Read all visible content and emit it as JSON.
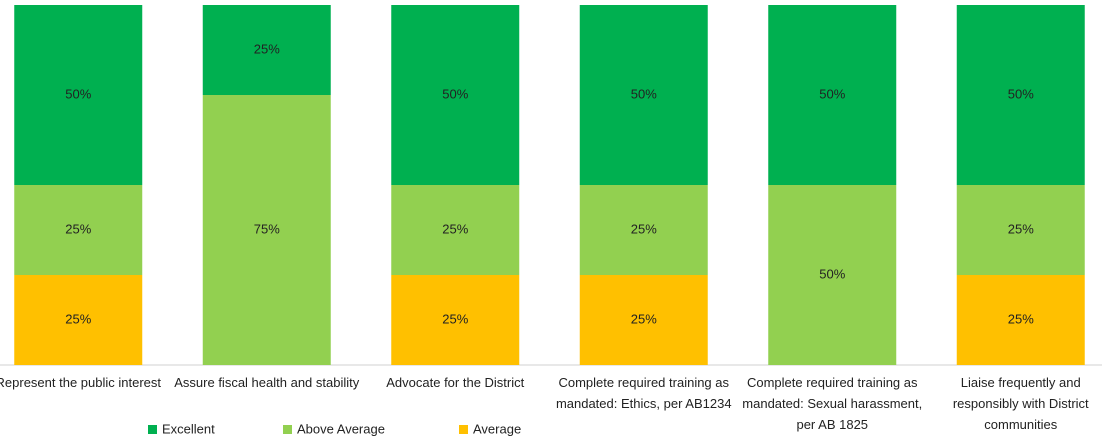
{
  "chart_data": {
    "type": "stacked_bar",
    "categories": [
      "Represent the public interest",
      "Assure fiscal health and stability",
      "Advocate for the District",
      "Complete required training as mandated: Ethics, per AB1234",
      "Complete required training as mandated: Sexual harassment, per AB 1825",
      "Liaise frequently and responsibly with District communities"
    ],
    "series": [
      {
        "name": "Excellent",
        "color": "#00b050",
        "values": [
          50,
          25,
          50,
          50,
          50,
          50
        ],
        "value_labels": [
          "50%",
          "25%",
          "50%",
          "50%",
          "50%",
          "50%"
        ]
      },
      {
        "name": "Above Average",
        "color": "#92d050",
        "values": [
          25,
          75,
          25,
          25,
          50,
          25
        ],
        "value_labels": [
          "25%",
          "75%",
          "25%",
          "25%",
          "50%",
          "25%"
        ]
      },
      {
        "name": "Average",
        "color": "#ffc000",
        "values": [
          25,
          0,
          25,
          25,
          0,
          25
        ],
        "value_labels": [
          "25%",
          null,
          "25%",
          "25%",
          null,
          "25%"
        ]
      }
    ],
    "ylim": [
      0,
      100
    ],
    "legend": "bottom"
  }
}
